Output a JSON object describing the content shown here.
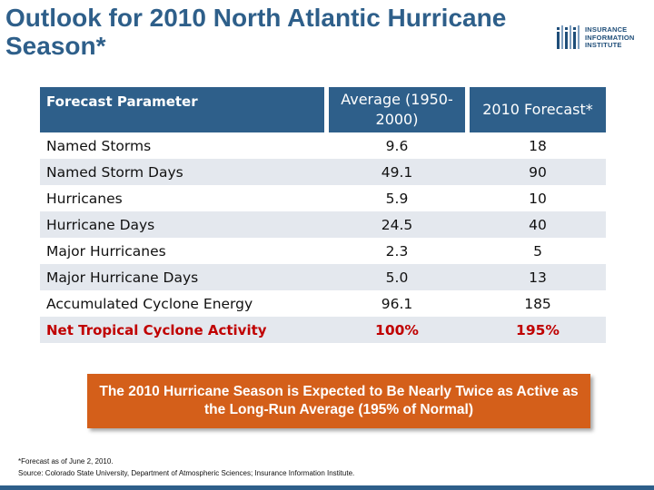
{
  "slide": {
    "title": "Outlook for 2010 North Atlantic Hurricane Season*"
  },
  "logo": {
    "line1": "INSURANCE",
    "line2": "INFORMATION",
    "line3": "INSTITUTE",
    "accent": "#1f4e79"
  },
  "table": {
    "headers": {
      "param": "Forecast Parameter",
      "avg": "Average (1950-2000)",
      "forecast": "2010 Forecast*"
    },
    "rows": [
      {
        "param": "Named Storms",
        "avg": "9.6",
        "forecast": "18"
      },
      {
        "param": "Named Storm Days",
        "avg": "49.1",
        "forecast": "90"
      },
      {
        "param": "Hurricanes",
        "avg": "5.9",
        "forecast": "10"
      },
      {
        "param": "Hurricane Days",
        "avg": "24.5",
        "forecast": "40"
      },
      {
        "param": "Major Hurricanes",
        "avg": "2.3",
        "forecast": "5"
      },
      {
        "param": "Major Hurricane Days",
        "avg": "5.0",
        "forecast": "13"
      },
      {
        "param": "Accumulated Cyclone Energy",
        "avg": "96.1",
        "forecast": "185"
      },
      {
        "param": "Net Tropical Cyclone Activity",
        "avg": "100%",
        "forecast": "195%"
      }
    ]
  },
  "callout": {
    "text": "The 2010 Hurricane Season is Expected to Be Nearly Twice as Active as the Long-Run Average (195% of Normal)"
  },
  "footnote": {
    "line1": "*Forecast as of June 2, 2010.",
    "line2": "Source: Colorado State University, Department of Atmospheric Sciences; Insurance Information Institute."
  },
  "colors": {
    "header_bg": "#2e5f8a",
    "title": "#2e5f8a",
    "highlight": "#c00000",
    "callout_bg": "#d45f1a"
  }
}
